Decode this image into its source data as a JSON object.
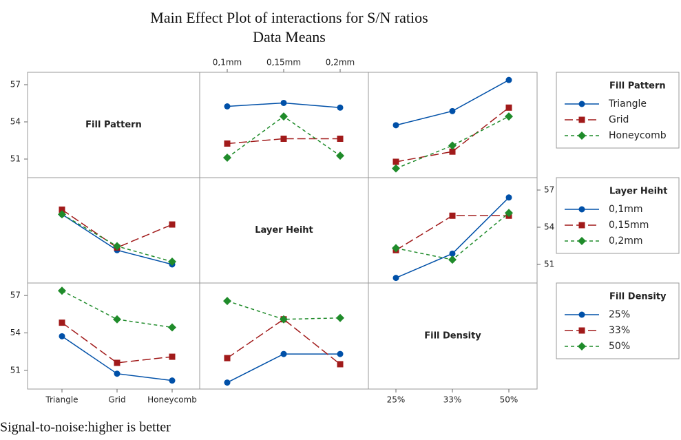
{
  "title": "Main Effect Plot of interactions for S/N ratios",
  "subtitle": "Data Means",
  "footnote": "Signal-to-noise:higher is better",
  "chart_data": {
    "type": "interaction-matrix",
    "factors": [
      {
        "name": "Fill Pattern",
        "levels": [
          "Triangle",
          "Grid",
          "Honeycomb"
        ]
      },
      {
        "name": "Layer Heiht",
        "levels": [
          "0,1mm",
          "0,15mm",
          "0,2mm"
        ]
      },
      {
        "name": "Fill Density",
        "levels": [
          "25%",
          "33%",
          "50%"
        ]
      }
    ],
    "colors": [
      "#0050a8",
      "#a11a1a",
      "#1f8b2a"
    ],
    "markers": [
      "circle",
      "square",
      "diamond"
    ],
    "ylim": [
      49.5,
      58
    ],
    "yticks": [
      51,
      54,
      57
    ],
    "panels": [
      {
        "trace": 0,
        "x": 1,
        "values": [
          [
            55.25,
            55.53,
            55.15
          ],
          [
            52.25,
            52.64,
            52.64
          ],
          [
            51.11,
            54.44,
            51.27
          ]
        ]
      },
      {
        "trace": 0,
        "x": 2,
        "values": [
          [
            53.73,
            54.87,
            57.38
          ],
          [
            50.78,
            51.6,
            55.15
          ],
          [
            50.24,
            52.09,
            54.44
          ]
        ]
      },
      {
        "trace": 1,
        "x": 0,
        "values": [
          [
            55.04,
            52.15,
            51.0
          ],
          [
            55.42,
            52.36,
            54.22
          ],
          [
            55.04,
            52.47,
            51.22
          ]
        ]
      },
      {
        "trace": 1,
        "x": 2,
        "values": [
          [
            49.91,
            51.87,
            56.4
          ],
          [
            52.15,
            54.93,
            54.93
          ],
          [
            52.31,
            51.38,
            55.15
          ]
        ]
      },
      {
        "trace": 2,
        "x": 0,
        "values": [
          [
            53.73,
            50.73,
            50.18
          ],
          [
            54.82,
            51.6,
            52.09
          ],
          [
            57.38,
            55.09,
            54.44
          ]
        ]
      },
      {
        "trace": 2,
        "x": 1,
        "values": [
          [
            50.02,
            52.31,
            52.31
          ],
          [
            51.98,
            55.09,
            51.49
          ],
          [
            56.56,
            55.09,
            55.2
          ]
        ]
      }
    ]
  }
}
